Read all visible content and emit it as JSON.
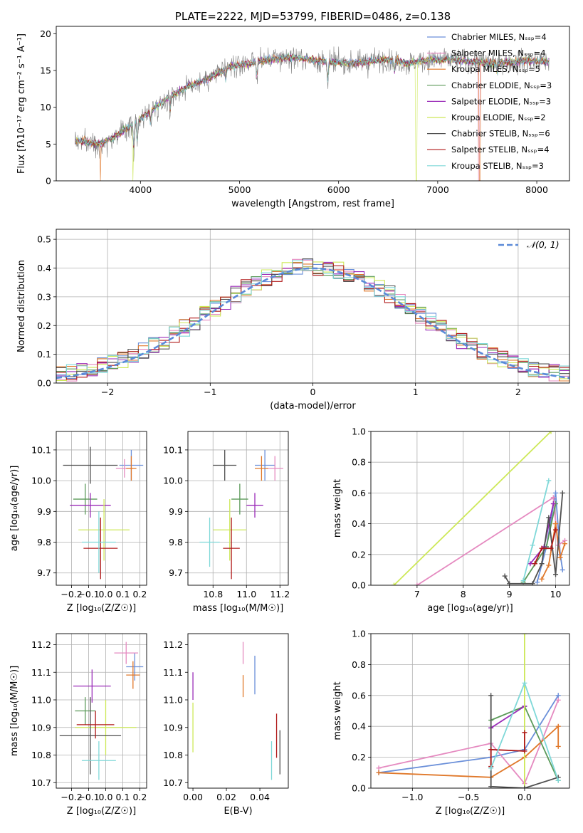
{
  "colors": {
    "chabrier_miles": "#6a8fd9",
    "salpeter_miles": "#e58ac0",
    "kroupa_miles": "#e0782a",
    "chabrier_elodie": "#5b9a59",
    "salpeter_elodie": "#9a2bb8",
    "kroupa_elodie": "#cde858",
    "chabrier_stelib": "#505050",
    "salpeter_stelib": "#b01a1a",
    "kroupa_stelib": "#7fd8d8",
    "gaussian": "#5b8ad8"
  },
  "chart_data": [
    {
      "id": "spectrum",
      "type": "line",
      "title": "PLATE=2222, MJD=53799, FIBERID=0486, z=0.138",
      "xlabel": "wavelength [Angstrom, rest frame]",
      "ylabel": "Flux [fλ10⁻¹⁷ erg cm⁻² s⁻¹ A⁻¹]",
      "xlim": [
        3150,
        8330
      ],
      "ylim": [
        0,
        21
      ],
      "xticks": [
        4000,
        5000,
        6000,
        7000,
        8000
      ],
      "yticks": [
        0,
        5,
        10,
        15,
        20
      ],
      "grid": false,
      "legend_position": "top-right",
      "legend": [
        "Chabrier MILES, N_SSP=4",
        "Salpeter MILES, N_SSP=4",
        "Kroupa MILES, N_SSP=5",
        "Chabrier ELODIE, N_SSP=3",
        "Salpeter ELODIE, N_SSP=3",
        "Kroupa ELODIE, N_SSP=2",
        "Chabrier STELIB, N_SSP=6",
        "Salpeter STELIB, N_SSP=4",
        "Kroupa STELIB, N_SSP=3"
      ],
      "continuum": [
        [
          3340,
          5.5
        ],
        [
          3600,
          5.0
        ],
        [
          3800,
          6.5
        ],
        [
          3950,
          8.0
        ],
        [
          4100,
          9.5
        ],
        [
          4300,
          11.5
        ],
        [
          4500,
          13.0
        ],
        [
          4700,
          14.0
        ],
        [
          4900,
          15.5
        ],
        [
          5100,
          16.0
        ],
        [
          5300,
          16.5
        ],
        [
          5500,
          16.8
        ],
        [
          5700,
          16.5
        ],
        [
          5900,
          16.2
        ],
        [
          6100,
          16.0
        ],
        [
          6300,
          16.2
        ],
        [
          6500,
          16.5
        ],
        [
          6700,
          16.0
        ],
        [
          6900,
          16.4
        ],
        [
          7100,
          16.5
        ],
        [
          7300,
          16.3
        ],
        [
          7500,
          16.0
        ],
        [
          7700,
          16.1
        ],
        [
          7900,
          16.3
        ],
        [
          8100,
          16.2
        ]
      ]
    },
    {
      "id": "residuals",
      "type": "step",
      "xlabel": "(data-model)/error",
      "ylabel": "Normed distribution",
      "xlim": [
        -2.5,
        2.5
      ],
      "ylim": [
        0,
        0.535
      ],
      "xticks": [
        -2,
        -1,
        0,
        1,
        2
      ],
      "yticks": [
        0.0,
        0.1,
        0.2,
        0.3,
        0.4,
        0.5
      ],
      "grid": true,
      "legend_position": "top-right",
      "legend": [
        "𝒩(0, 1)"
      ]
    },
    {
      "id": "age_vs_Z",
      "type": "errorbar",
      "xlabel": "Z [log₁₀(Z/Z☉)]",
      "ylabel": "age  [log₁₀(age/yr)]",
      "xlim": [
        -0.29,
        0.24
      ],
      "ylim": [
        9.66,
        10.16
      ],
      "xticks": [
        -0.2,
        -0.1,
        0.0,
        0.1,
        0.2
      ],
      "yticks": [
        9.7,
        9.8,
        9.9,
        10.0,
        10.1
      ],
      "grid": true,
      "points": [
        {
          "key": "chabrier_miles",
          "x": 0.15,
          "xerr": 0.07,
          "y": 10.05,
          "yerr": 0.05
        },
        {
          "key": "salpeter_miles",
          "x": 0.11,
          "xerr": 0.05,
          "y": 10.04,
          "yerr": 0.03
        },
        {
          "key": "kroupa_miles",
          "x": 0.15,
          "xerr": 0.03,
          "y": 10.04,
          "yerr": 0.04
        },
        {
          "key": "chabrier_elodie",
          "x": -0.12,
          "xerr": 0.07,
          "y": 9.94,
          "yerr": 0.05
        },
        {
          "key": "salpeter_elodie",
          "x": -0.09,
          "xerr": 0.12,
          "y": 9.92,
          "yerr": 0.04
        },
        {
          "key": "kroupa_elodie",
          "x": -0.01,
          "xerr": 0.15,
          "y": 9.84,
          "yerr": 0.1
        },
        {
          "key": "chabrier_stelib",
          "x": -0.09,
          "xerr": 0.16,
          "y": 10.05,
          "yerr": 0.06
        },
        {
          "key": "salpeter_stelib",
          "x": -0.03,
          "xerr": 0.1,
          "y": 9.78,
          "yerr": 0.1
        },
        {
          "key": "kroupa_stelib",
          "x": -0.04,
          "xerr": 0.1,
          "y": 9.8,
          "yerr": 0.1
        }
      ]
    },
    {
      "id": "age_vs_mass",
      "type": "errorbar",
      "xlabel": "mass [log₁₀(M/M☉)]",
      "ylabel": "",
      "xlim": [
        10.65,
        11.25
      ],
      "ylim": [
        9.66,
        10.16
      ],
      "xticks": [
        10.8,
        11.0,
        11.2
      ],
      "yticks": [
        9.7,
        9.8,
        9.9,
        10.0,
        10.1
      ],
      "grid": true,
      "points": [
        {
          "key": "chabrier_miles",
          "x": 11.11,
          "xerr": 0.06,
          "y": 10.05,
          "yerr": 0.05
        },
        {
          "key": "salpeter_miles",
          "x": 11.17,
          "xerr": 0.05,
          "y": 10.04,
          "yerr": 0.04
        },
        {
          "key": "kroupa_miles",
          "x": 11.09,
          "xerr": 0.04,
          "y": 10.04,
          "yerr": 0.04
        },
        {
          "key": "chabrier_elodie",
          "x": 10.96,
          "xerr": 0.05,
          "y": 9.94,
          "yerr": 0.05
        },
        {
          "key": "salpeter_elodie",
          "x": 11.05,
          "xerr": 0.05,
          "y": 9.92,
          "yerr": 0.04
        },
        {
          "key": "kroupa_elodie",
          "x": 10.9,
          "xerr": 0.1,
          "y": 9.84,
          "yerr": 0.1
        },
        {
          "key": "chabrier_stelib",
          "x": 10.87,
          "xerr": 0.07,
          "y": 10.05,
          "yerr": 0.05
        },
        {
          "key": "salpeter_stelib",
          "x": 10.91,
          "xerr": 0.05,
          "y": 9.78,
          "yerr": 0.1
        },
        {
          "key": "kroupa_stelib",
          "x": 10.78,
          "xerr": 0.06,
          "y": 9.8,
          "yerr": 0.08
        }
      ]
    },
    {
      "id": "mass_weight_vs_age",
      "type": "line",
      "xlabel": "age  [log₁₀(age/yr)]",
      "ylabel": "mass weight",
      "xlim": [
        6.0,
        10.3
      ],
      "ylim": [
        0,
        1.0
      ],
      "xticks": [
        7,
        8,
        9,
        10
      ],
      "yticks": [
        0.0,
        0.2,
        0.4,
        0.6,
        0.8,
        1.0
      ],
      "grid": true,
      "series": [
        {
          "key": "chabrier_miles",
          "x": [
            9.6,
            9.8,
            10.0,
            10.1,
            10.15
          ],
          "y": [
            0.02,
            0.25,
            0.6,
            0.2,
            0.1
          ]
        },
        {
          "key": "salpeter_miles",
          "x": [
            7.0,
            9.95,
            10.05,
            10.2
          ],
          "y": [
            0.0,
            0.57,
            0.26,
            0.29
          ]
        },
        {
          "key": "kroupa_miles",
          "x": [
            9.7,
            9.85,
            10.0,
            10.1,
            10.2
          ],
          "y": [
            0.04,
            0.13,
            0.4,
            0.18,
            0.27
          ]
        },
        {
          "key": "chabrier_elodie",
          "x": [
            9.3,
            9.8,
            10.0
          ],
          "y": [
            0.02,
            0.25,
            0.53
          ]
        },
        {
          "key": "salpeter_elodie",
          "x": [
            9.45,
            9.75,
            9.95
          ],
          "y": [
            0.14,
            0.25,
            0.53
          ]
        },
        {
          "key": "kroupa_elodie",
          "x": [
            6.5,
            9.9
          ],
          "y": [
            0.0,
            1.0
          ]
        },
        {
          "key": "chabrier_stelib",
          "x": [
            8.9,
            9.0,
            9.5,
            9.7,
            9.85,
            10.0,
            10.15
          ],
          "y": [
            0.06,
            0.01,
            0.01,
            0.14,
            0.44,
            0.07,
            0.6
          ]
        },
        {
          "key": "salpeter_stelib",
          "x": [
            9.55,
            9.7,
            9.9,
            10.0
          ],
          "y": [
            0.14,
            0.24,
            0.24,
            0.36
          ]
        },
        {
          "key": "kroupa_stelib",
          "x": [
            9.3,
            9.5,
            9.85
          ],
          "y": [
            0.03,
            0.26,
            0.68
          ]
        }
      ]
    },
    {
      "id": "mass_vs_Z",
      "type": "errorbar",
      "xlabel": "Z [log₁₀(Z/Z☉)]",
      "ylabel": "mass [log₁₀(M/M☉)]",
      "xlim": [
        -0.29,
        0.24
      ],
      "ylim": [
        10.68,
        11.24
      ],
      "xticks": [
        -0.2,
        -0.1,
        0.0,
        0.1,
        0.2
      ],
      "yticks": [
        10.7,
        10.8,
        10.9,
        11.0,
        11.1,
        11.2
      ],
      "grid": true,
      "points": [
        {
          "key": "chabrier_miles",
          "x": 0.17,
          "xerr": 0.05,
          "y": 11.12,
          "yerr": 0.05
        },
        {
          "key": "salpeter_miles",
          "x": 0.12,
          "xerr": 0.07,
          "y": 11.17,
          "yerr": 0.04
        },
        {
          "key": "kroupa_miles",
          "x": 0.16,
          "xerr": 0.04,
          "y": 11.09,
          "yerr": 0.05
        },
        {
          "key": "chabrier_elodie",
          "x": -0.12,
          "xerr": 0.06,
          "y": 10.96,
          "yerr": 0.05
        },
        {
          "key": "salpeter_elodie",
          "x": -0.08,
          "xerr": 0.11,
          "y": 11.05,
          "yerr": 0.06
        },
        {
          "key": "kroupa_elodie",
          "x": 0.0,
          "xerr": 0.18,
          "y": 10.9,
          "yerr": 0.1
        },
        {
          "key": "chabrier_stelib",
          "x": -0.09,
          "xerr": 0.18,
          "y": 10.87,
          "yerr": 0.14
        },
        {
          "key": "salpeter_stelib",
          "x": -0.06,
          "xerr": 0.11,
          "y": 10.91,
          "yerr": 0.05
        },
        {
          "key": "kroupa_stelib",
          "x": -0.04,
          "xerr": 0.1,
          "y": 10.78,
          "yerr": 0.07
        }
      ]
    },
    {
      "id": "mass_vs_ebv",
      "type": "errorbar",
      "xlabel": "E(B-V)",
      "ylabel": "",
      "xlim": [
        -0.003,
        0.057
      ],
      "ylim": [
        10.68,
        11.24
      ],
      "xticks": [
        0.0,
        0.02,
        0.04
      ],
      "yticks": [
        10.7,
        10.8,
        10.9,
        11.0,
        11.1,
        11.2
      ],
      "grid": false,
      "points": [
        {
          "key": "chabrier_miles",
          "x": 0.037,
          "xerr": 0,
          "y": 11.09,
          "yerr": 0.07
        },
        {
          "key": "salpeter_miles",
          "x": 0.03,
          "xerr": 0,
          "y": 11.17,
          "yerr": 0.04
        },
        {
          "key": "kroupa_miles",
          "x": 0.03,
          "xerr": 0,
          "y": 11.05,
          "yerr": 0.04
        },
        {
          "key": "salpeter_elodie",
          "x": 0.0,
          "xerr": 0,
          "y": 11.05,
          "yerr": 0.05
        },
        {
          "key": "kroupa_elodie",
          "x": 0.0,
          "xerr": 0,
          "y": 10.9,
          "yerr": 0.09
        },
        {
          "key": "chabrier_stelib",
          "x": 0.052,
          "xerr": 0,
          "y": 10.81,
          "yerr": 0.08
        },
        {
          "key": "salpeter_stelib",
          "x": 0.05,
          "xerr": 0,
          "y": 10.87,
          "yerr": 0.08
        },
        {
          "key": "kroupa_stelib",
          "x": 0.047,
          "xerr": 0,
          "y": 10.78,
          "yerr": 0.07
        }
      ]
    },
    {
      "id": "mass_weight_vs_Z",
      "type": "line",
      "xlabel": "Z [log₁₀(Z/Z☉)]",
      "ylabel": "mass weight",
      "xlim": [
        -1.37,
        0.4
      ],
      "ylim": [
        0,
        1.0
      ],
      "xticks": [
        -1.0,
        -0.5,
        0.0
      ],
      "yticks": [
        0.0,
        0.2,
        0.4,
        0.6,
        0.8,
        1.0
      ],
      "grid": true,
      "series": [
        {
          "key": "chabrier_miles",
          "x": [
            -1.3,
            -0.3,
            0.0,
            0.3
          ],
          "y": [
            0.1,
            0.2,
            0.25,
            0.6
          ]
        },
        {
          "key": "salpeter_miles",
          "x": [
            -1.3,
            -0.3,
            0.0,
            0.3
          ],
          "y": [
            0.13,
            0.29,
            0.03,
            0.57
          ]
        },
        {
          "key": "kroupa_miles",
          "x": [
            -1.3,
            -0.3,
            0.0,
            0.3,
            0.3
          ],
          "y": [
            0.1,
            0.07,
            0.2,
            0.4,
            0.27
          ]
        },
        {
          "key": "chabrier_elodie",
          "x": [
            -0.3,
            0.0,
            0.3
          ],
          "y": [
            0.44,
            0.53,
            0.05
          ]
        },
        {
          "key": "salpeter_elodie",
          "x": [
            -0.3,
            0.0
          ],
          "y": [
            0.39,
            0.53
          ]
        },
        {
          "key": "kroupa_elodie",
          "x": [
            0.0,
            0.0
          ],
          "y": [
            0.0,
            1.0
          ]
        },
        {
          "key": "chabrier_stelib",
          "x": [
            -0.3,
            -0.3,
            0.0,
            0.3
          ],
          "y": [
            0.6,
            0.01,
            0.0,
            0.07
          ]
        },
        {
          "key": "salpeter_stelib",
          "x": [
            -0.3,
            -0.3,
            0.0,
            0.0
          ],
          "y": [
            0.14,
            0.25,
            0.24,
            0.36
          ]
        },
        {
          "key": "kroupa_stelib",
          "x": [
            -0.3,
            0.0,
            0.3
          ],
          "y": [
            0.13,
            0.68,
            0.05
          ]
        }
      ]
    }
  ]
}
